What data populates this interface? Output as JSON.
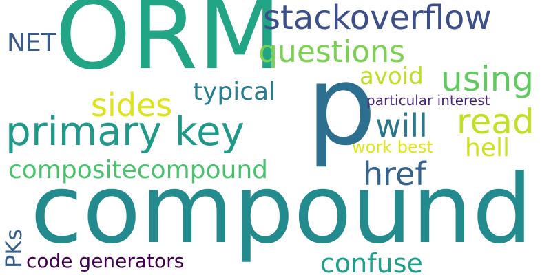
{
  "cloud": {
    "words": [
      {
        "id": "orm",
        "text": "ORM",
        "color": "#21a585"
      },
      {
        "id": "compound",
        "text": "compound",
        "color": "#238a8d"
      },
      {
        "id": "p",
        "text": "p",
        "color": "#2c6f8e"
      },
      {
        "id": "stackoverflow",
        "text": "stackoverflow",
        "color": "#3b4f8a"
      },
      {
        "id": "questions",
        "text": "questions",
        "color": "#7ad151"
      },
      {
        "id": "net",
        "text": "NET",
        "color": "#38598c"
      },
      {
        "id": "avoid",
        "text": "avoid",
        "color": "#bddf26"
      },
      {
        "id": "using",
        "text": "using",
        "color": "#60c960"
      },
      {
        "id": "sides",
        "text": "sides",
        "color": "#dde318"
      },
      {
        "id": "typical",
        "text": "typical",
        "color": "#277f8e"
      },
      {
        "id": "particular_interest",
        "text": "particular interest",
        "color": "#482576"
      },
      {
        "id": "primary_key",
        "text": "primary key",
        "color": "#1f998a"
      },
      {
        "id": "will",
        "text": "will",
        "color": "#2a788e"
      },
      {
        "id": "read",
        "text": "read",
        "color": "#c2df23"
      },
      {
        "id": "work_best",
        "text": "work best",
        "color": "#e2e418"
      },
      {
        "id": "hell",
        "text": "hell",
        "color": "#cde11d"
      },
      {
        "id": "compositecompound",
        "text": "compositecompound",
        "color": "#4ac16d"
      },
      {
        "id": "href",
        "text": "href",
        "color": "#33638d"
      },
      {
        "id": "pks",
        "text": "PKs",
        "color": "#355f8d"
      },
      {
        "id": "code_generators",
        "text": "code generators",
        "color": "#440154"
      },
      {
        "id": "confuse",
        "text": "confuse",
        "color": "#1f9e89"
      }
    ]
  }
}
